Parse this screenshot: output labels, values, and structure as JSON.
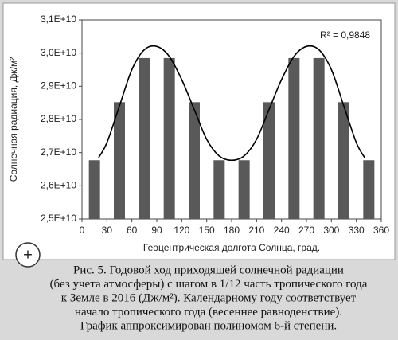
{
  "chart_data": {
    "type": "bar",
    "x_label": "Геоцентрическая долгота Солнца, град.",
    "y_label": "Солнечная радиация, Дж/м²",
    "annotation": "R² = 0,9848",
    "x": [
      15,
      45,
      75,
      105,
      135,
      165,
      195,
      225,
      255,
      285,
      315,
      345
    ],
    "values": [
      26770000000,
      28520000000,
      29850000000,
      29850000000,
      28520000000,
      26770000000,
      26770000000,
      28520000000,
      29850000000,
      29850000000,
      28520000000,
      26770000000
    ],
    "color": "#595959",
    "trend": {
      "x": [
        20,
        30,
        45,
        60,
        75,
        90,
        105,
        120,
        135,
        150,
        165,
        180,
        195,
        210,
        225,
        240,
        255,
        270,
        285,
        300,
        315,
        330,
        340
      ],
      "values": [
        26850000000,
        27300000000,
        28400000000,
        29500000000,
        30100000000,
        30200000000,
        29900000000,
        29200000000,
        28300000000,
        27400000000,
        26900000000,
        26770000000,
        26900000000,
        27400000000,
        28300000000,
        29200000000,
        29900000000,
        30200000000,
        30100000000,
        29500000000,
        28400000000,
        27300000000,
        26850000000
      ],
      "color": "#000000"
    },
    "xlim": [
      0,
      360
    ],
    "xticks": [
      0,
      30,
      60,
      90,
      120,
      150,
      180,
      210,
      240,
      270,
      300,
      330,
      360
    ],
    "ylim": [
      25000000000,
      31000000000
    ],
    "yticks": [
      {
        "value": 25000000000,
        "label": "2,5E+10"
      },
      {
        "value": 26000000000,
        "label": "2,6E+10"
      },
      {
        "value": 27000000000,
        "label": "2,7E+10"
      },
      {
        "value": 28000000000,
        "label": "2,8E+10"
      },
      {
        "value": 29000000000,
        "label": "2,9E+10"
      },
      {
        "value": 30000000000,
        "label": "3,0E+10"
      },
      {
        "value": 31000000000,
        "label": "3,1E+10"
      }
    ],
    "grid": false
  },
  "caption": {
    "lines": [
      "Рис. 5. Годовой ход приходящей солнечной радиации",
      "(без учета атмосферы) с шагом в 1/12 часть тропического года",
      "к Земле в 2016 (Дж/м²). Календарному году соответствует",
      "начало тропического года (весеннее равноденствие).",
      "График аппроксимирован полиномом 6-й степени."
    ]
  }
}
